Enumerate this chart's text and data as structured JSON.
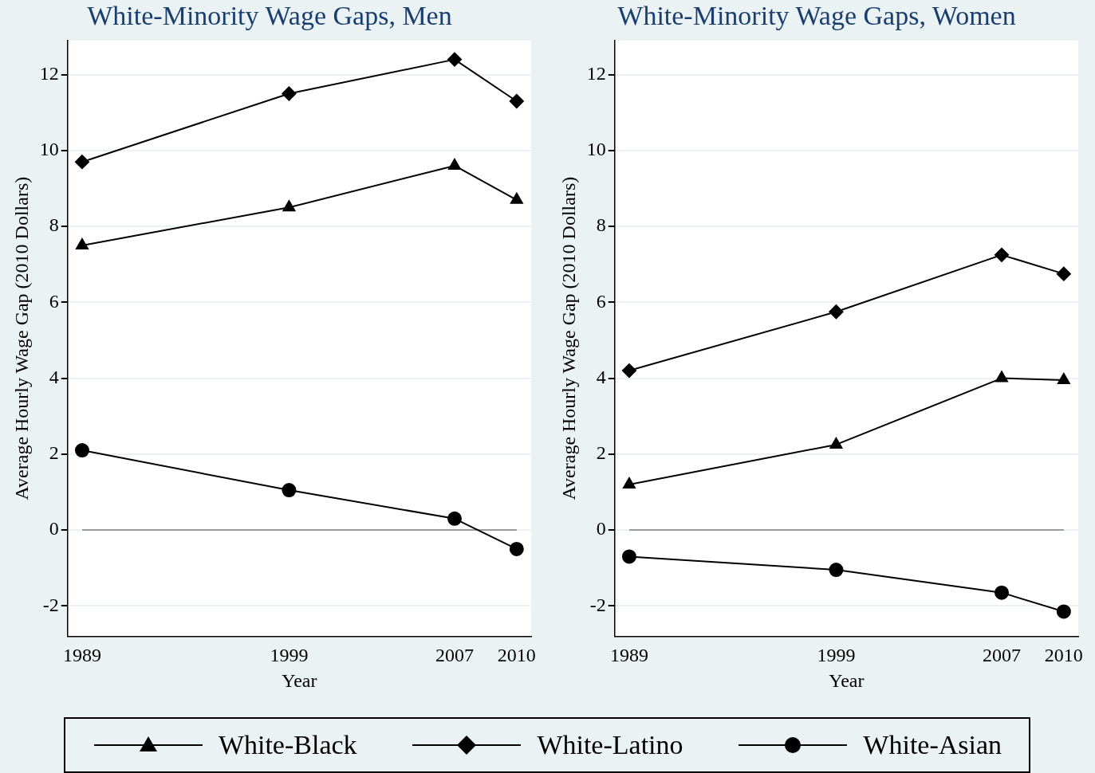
{
  "chart_data": [
    {
      "type": "line",
      "title": "White-Minority Wage Gaps, Men",
      "xlabel": "Year",
      "ylabel": "Average Hourly Wage Gap (2010 Dollars)",
      "x": [
        1989,
        1999,
        2007,
        2010
      ],
      "xlim": [
        1988.3,
        2010.7
      ],
      "xticks": [
        1989,
        1999,
        2007,
        2010
      ],
      "ylim": [
        -2.8,
        12.9
      ],
      "yticks": [
        -2,
        0,
        2,
        4,
        6,
        8,
        10,
        12
      ],
      "grid": "y",
      "legend": "bottom",
      "line_style": "solid",
      "series": [
        {
          "name": "White-Black",
          "color": "#000000",
          "marker": "triangle",
          "values": [
            7.5,
            8.5,
            9.6,
            8.7
          ]
        },
        {
          "name": "White-Latino",
          "color": "#000000",
          "marker": "diamond",
          "values": [
            9.7,
            11.5,
            12.4,
            11.3
          ]
        },
        {
          "name": "White-Asian",
          "color": "#000000",
          "marker": "circle",
          "values": [
            2.1,
            1.05,
            0.3,
            -0.5
          ]
        }
      ],
      "ref_lines": [
        {
          "axis": "y",
          "value": 0,
          "color": "#808080"
        }
      ]
    },
    {
      "type": "line",
      "title": "White-Minority Wage Gaps, Women",
      "xlabel": "Year",
      "ylabel": "Average Hourly Wage Gap (2010 Dollars)",
      "x": [
        1989,
        1999,
        2007,
        2010
      ],
      "xlim": [
        1988.3,
        2010.7
      ],
      "xticks": [
        1989,
        1999,
        2007,
        2010
      ],
      "ylim": [
        -2.8,
        12.9
      ],
      "yticks": [
        -2,
        0,
        2,
        4,
        6,
        8,
        10,
        12
      ],
      "grid": "y",
      "line_style": "solid",
      "series": [
        {
          "color": "#000000",
          "marker": "triangle",
          "values": [
            1.2,
            2.25,
            4.0,
            3.95
          ]
        },
        {
          "color": "#000000",
          "marker": "diamond",
          "values": [
            4.2,
            5.75,
            7.25,
            6.75
          ]
        },
        {
          "color": "#000000",
          "marker": "circle",
          "values": [
            -0.7,
            -1.05,
            -1.65,
            -2.15
          ]
        }
      ],
      "ref_lines": [
        {
          "axis": "y",
          "value": 0,
          "color": "#808080"
        }
      ]
    }
  ]
}
